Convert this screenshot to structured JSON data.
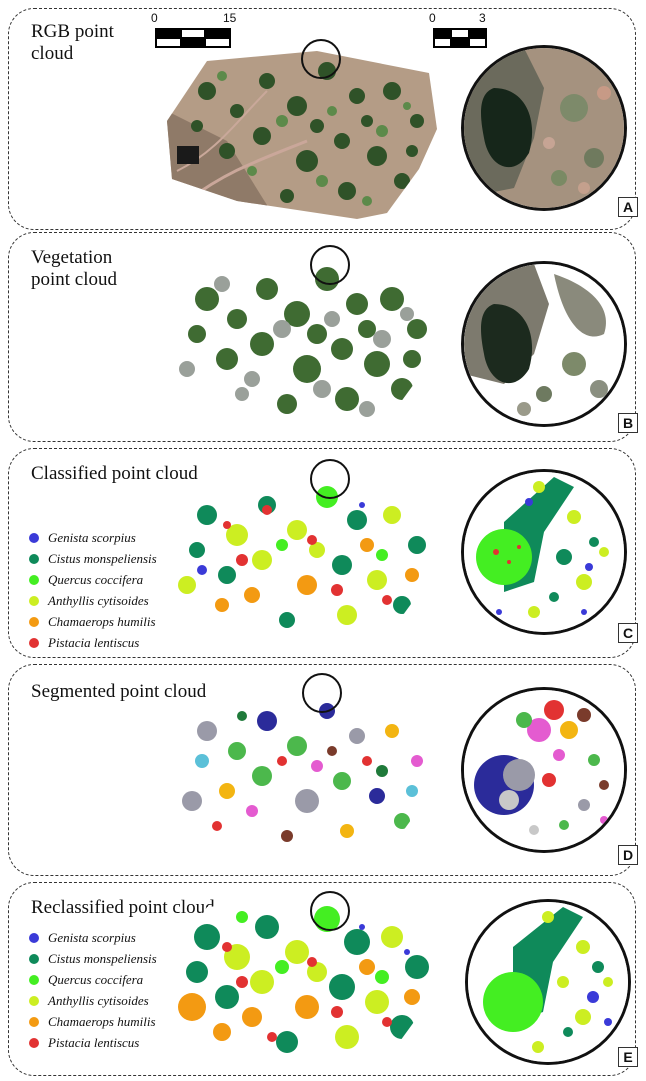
{
  "panels": [
    {
      "id": "A",
      "letter": "A",
      "title": "RGB point\ncloud"
    },
    {
      "id": "B",
      "letter": "B",
      "title": "Vegetation\npoint cloud"
    },
    {
      "id": "C",
      "letter": "C",
      "title": "Classified point cloud"
    },
    {
      "id": "D",
      "letter": "D",
      "title": "Segmented point cloud"
    },
    {
      "id": "E",
      "letter": "E",
      "title": "Reclassified point cloud"
    }
  ],
  "scalebars": {
    "main": {
      "min": "0",
      "max": "15"
    },
    "zoom": {
      "min": "0",
      "max": "3"
    }
  },
  "legend": [
    {
      "name": "Genista scorpius",
      "color": "#3a3ad8"
    },
    {
      "name": "Cistus monspeliensis",
      "color": "#0f8a5a"
    },
    {
      "name": "Quercus coccifera",
      "color": "#44ee22"
    },
    {
      "name": "Anthyllis cytisoides",
      "color": "#ccee22"
    },
    {
      "name": "Chamaerops humilis",
      "color": "#f39a12"
    },
    {
      "name": "Pistacia lentiscus",
      "color": "#e23232"
    }
  ],
  "colors": {
    "rgb_ground": "#b39a84",
    "rgb_dark": "#1f3b1a",
    "veg_green": "#3f6b32",
    "veg_gray": "#9aa09a",
    "segment_palette": [
      "#2b2b9a",
      "#9a9aa8",
      "#e45bd0",
      "#e23232",
      "#f3b512",
      "#4cb84c",
      "#7a3b2b",
      "#5bc0d8",
      "#c8c8c8",
      "#1f7a3a"
    ]
  }
}
